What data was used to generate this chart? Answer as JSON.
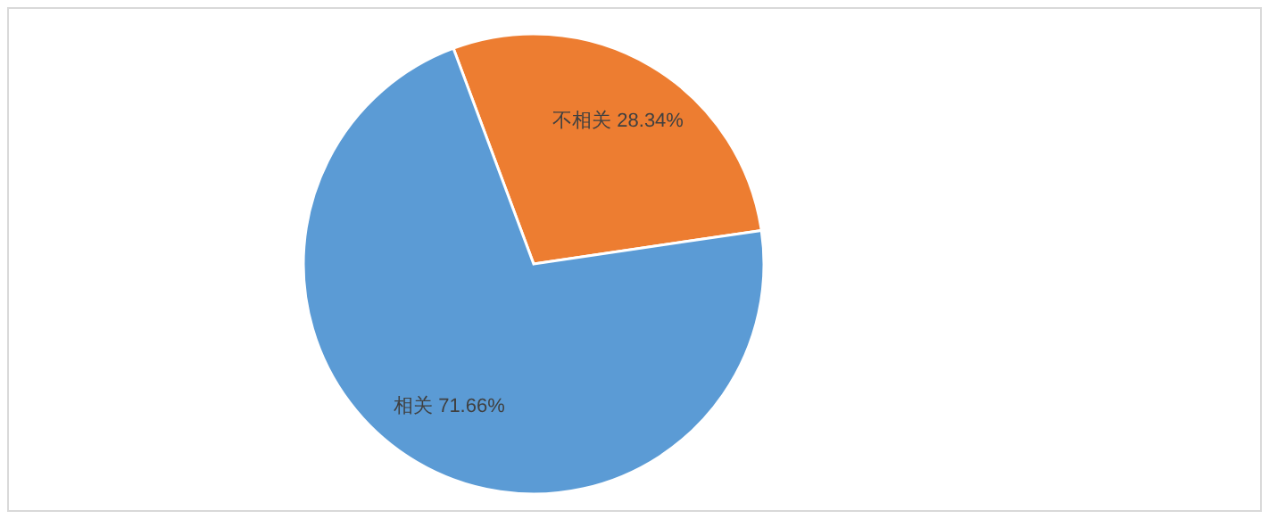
{
  "chart_data": {
    "type": "pie",
    "categories": [
      "不相关",
      "相关"
    ],
    "values": [
      28.34,
      71.66
    ],
    "value_labels": [
      "28.34%",
      "71.66%"
    ],
    "colors": [
      "#ed7d31",
      "#5b9bd5"
    ],
    "legend": false
  }
}
